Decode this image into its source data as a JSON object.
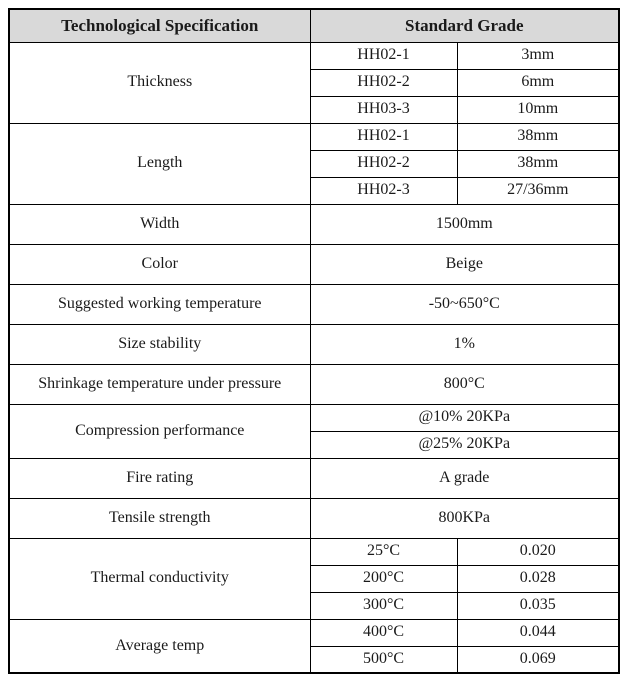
{
  "colors": {
    "header_bg": "#d9d9d9",
    "border": "#000000",
    "text": "#1a1a1a"
  },
  "header": {
    "spec": "Technological Specification",
    "grade": "Standard Grade"
  },
  "thickness": {
    "label": "Thickness",
    "rows": [
      {
        "code": "HH02-1",
        "value": "3mm"
      },
      {
        "code": "HH02-2",
        "value": "6mm"
      },
      {
        "code": "HH03-3",
        "value": "10mm"
      }
    ]
  },
  "length": {
    "label": "Length",
    "rows": [
      {
        "code": "HH02-1",
        "value": "38mm"
      },
      {
        "code": "HH02-2",
        "value": "38mm"
      },
      {
        "code": "HH02-3",
        "value": "27/36mm"
      }
    ]
  },
  "width_row": {
    "label": "Width",
    "value": "1500mm"
  },
  "color_row": {
    "label": "Color",
    "value": "Beige"
  },
  "working_temperature": {
    "label": "Suggested working temperature",
    "value": "-50~650°C"
  },
  "size_stability": {
    "label": "Size stability",
    "value": "1%"
  },
  "shrinkage_temperature": {
    "label": "Shrinkage temperature under pressure",
    "value": "800°C"
  },
  "compression": {
    "label": "Compression performance",
    "rows": [
      {
        "value": "@10% 20KPa"
      },
      {
        "value": "@25% 20KPa"
      }
    ]
  },
  "fire_rating": {
    "label": "Fire rating",
    "value": "A grade"
  },
  "tensile_strength": {
    "label": "Tensile strength",
    "value": "800KPa"
  },
  "thermal_conductivity": {
    "label": "Thermal conductivity",
    "rows": [
      {
        "temp": "25°C",
        "value": "0.020"
      },
      {
        "temp": "200°C",
        "value": "0.028"
      },
      {
        "temp": "300°C",
        "value": "0.035"
      }
    ]
  },
  "average_temp": {
    "label": "Average temp",
    "rows": [
      {
        "temp": "400°C",
        "value": "0.044"
      },
      {
        "temp": "500°C",
        "value": "0.069"
      }
    ]
  }
}
